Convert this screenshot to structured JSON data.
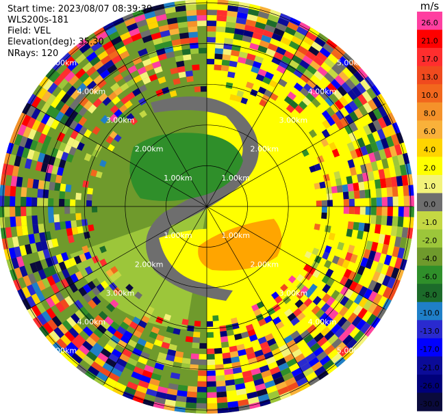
{
  "header": {
    "start_time": "Start time: 2023/08/07 08:39:39",
    "site": "WLS200s-181",
    "field": "Field: VEL",
    "elevation": "Elevation(deg): 35.30",
    "nrays": "NRays: 120"
  },
  "chart_data": {
    "type": "heatmap",
    "projection": "polar-ppi",
    "field": "VEL",
    "n_rays": 120,
    "elevation_deg": 35.3,
    "range_rings_km": [
      1,
      2,
      3,
      4,
      5
    ],
    "ring_labels": [
      "1.00km",
      "2.00km",
      "3.00km",
      "4.00km",
      "5.00km"
    ],
    "max_range_km": 5.05,
    "spoke_angles_deg": [
      0,
      30,
      60,
      90,
      120,
      150,
      180,
      210,
      240,
      270,
      300,
      330
    ],
    "colorbar": {
      "unit": "m/s",
      "ticks": [
        "26.0",
        "21.0",
        "17.0",
        "13.0",
        "10.0",
        "8.0",
        "6.0",
        "4.0",
        "2.0",
        "1.0",
        "0.0",
        "-1.0",
        "-2.0",
        "-4.0",
        "-6.0",
        "-8.0",
        "-10.0",
        "-13.0",
        "-17.0",
        "-21.0",
        "-26.0",
        "-30.0"
      ],
      "colors": [
        "#ff3fa0",
        "#ff0000",
        "#ff2e2e",
        "#f04a1e",
        "#f2671d",
        "#f5922a",
        "#f9b13a",
        "#ffd400",
        "#ffff00",
        "#f3f37a",
        "#6e6e6e",
        "#c4d843",
        "#9cc63a",
        "#6f9a2c",
        "#2f8f2a",
        "#1c6b2a",
        "#1f7fc8",
        "#2a2acf",
        "#0000ff",
        "#0b0b98",
        "#00007a",
        "#0a0a3c"
      ]
    },
    "regions": [
      {
        "desc": "near-zero/positive (yellow) east half",
        "value": 2.0
      },
      {
        "desc": "stronger positive (orange) south-east",
        "value": 4.0
      },
      {
        "desc": "negative (dark green) north-west",
        "value": -6.0
      },
      {
        "desc": "negative (olive green) west/south-west",
        "value": -4.0
      },
      {
        "desc": "zero-line (gray) band",
        "value": 0.0
      },
      {
        "desc": "noisy multicolor outer annulus",
        "value": null
      }
    ]
  }
}
